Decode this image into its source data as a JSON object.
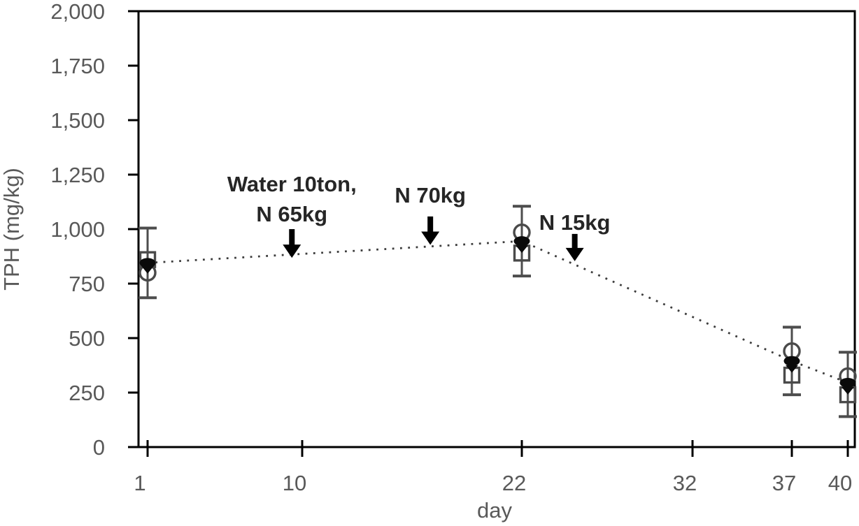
{
  "page": {
    "background": "#ffffff"
  },
  "colors": {
    "axis_line": "#000000",
    "tick_label": "#595959",
    "axis_title": "#595959",
    "annotation_text": "#262626",
    "marker_open_stroke": "#4a4a4a",
    "marker_filled": "#0a0a0a",
    "error_bar": "#4d4d4d",
    "trendline": "#3c3c3c",
    "arrow": "#000000"
  },
  "chart_data": {
    "type": "scatter",
    "title": "",
    "xlabel": "day",
    "ylabel": "TPH (mg/kg)",
    "xlim": [
      1,
      40
    ],
    "ylim": [
      0,
      2000
    ],
    "grid": false,
    "legend": "none",
    "x_ticks": [
      1,
      10,
      22,
      32,
      37,
      40
    ],
    "x_tick_labels": [
      "1",
      "10",
      "22",
      "32",
      "37",
      "40"
    ],
    "y_ticks": [
      0,
      250,
      500,
      750,
      1000,
      1250,
      1500,
      1750,
      2000
    ],
    "y_tick_labels": [
      "0",
      "250",
      "500",
      "750",
      "1,000",
      "1,250",
      "1,500",
      "1,750",
      "2,000"
    ],
    "sample_days": [
      1,
      22,
      37,
      40
    ],
    "series": [
      {
        "name": "replicate-open-square",
        "marker": "open-square",
        "values": [
          860,
          890,
          330,
          240
        ]
      },
      {
        "name": "replicate-open-circle",
        "marker": "open-circle",
        "values": [
          800,
          985,
          440,
          325
        ]
      },
      {
        "name": "mean-filled-circle",
        "marker": "filled-circle",
        "values": [
          845,
          945,
          395,
          295
        ]
      },
      {
        "name": "replicate-filled-triangle",
        "marker": "filled-triangle-down",
        "values": [
          815,
          910,
          360,
          260
        ]
      }
    ],
    "trendline": {
      "style": "dotted",
      "series": "mean-filled-circle",
      "points_days": [
        1,
        22,
        37,
        40
      ],
      "points_values": [
        845,
        945,
        395,
        295
      ]
    },
    "error_bars": [
      {
        "day": 1,
        "low": 685,
        "high": 1005
      },
      {
        "day": 22,
        "low": 785,
        "high": 1105
      },
      {
        "day": 37,
        "low": 240,
        "high": 550
      },
      {
        "day": 40,
        "low": 140,
        "high": 435
      }
    ],
    "annotations": [
      {
        "lines": [
          "Water 10ton,",
          "N 65kg"
        ],
        "day": 9.4,
        "text_center_value": 1208,
        "arrow_from_value": 1000,
        "arrow_to_value": 868
      },
      {
        "lines": [
          "N 70kg"
        ],
        "day": 17,
        "text_center_value": 1157,
        "arrow_from_value": 1058,
        "arrow_to_value": 928
      },
      {
        "lines": [
          "N 15kg"
        ],
        "day": 25.1,
        "text_center_value": 1032,
        "arrow_from_value": 978,
        "arrow_to_value": 853
      }
    ]
  }
}
